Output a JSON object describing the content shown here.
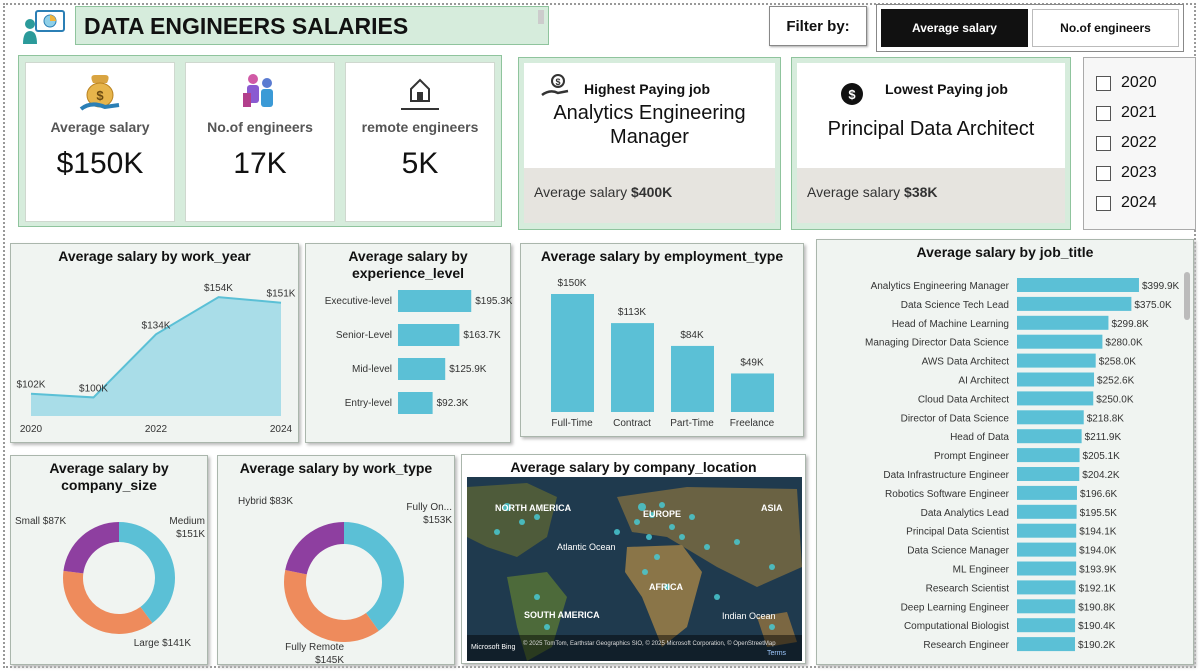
{
  "header": {
    "title": "DATA ENGINEERS SALARIES",
    "filter_label": "Filter by:",
    "toggle_active": "Average salary",
    "toggle_inactive": "No.of engineers"
  },
  "kpis": [
    {
      "label": "Average salary",
      "value": "$150K",
      "icon": "money-bag-icon"
    },
    {
      "label": "No.of engineers",
      "value": "17K",
      "icon": "people-icon"
    },
    {
      "label": "remote engineers",
      "value": "5K",
      "icon": "home-icon"
    }
  ],
  "highest": {
    "heading": "Highest Paying job",
    "job": "Analytics Engineering Manager",
    "foot_label": "Average salary",
    "foot_value": "$400K"
  },
  "lowest": {
    "heading": "Lowest Paying job",
    "job": "Principal Data Architect",
    "foot_label": "Average salary",
    "foot_value": "$38K"
  },
  "years": [
    "2020",
    "2021",
    "2022",
    "2023",
    "2024"
  ],
  "map": {
    "title": "Average salary by company_location",
    "labels": [
      "NORTH AMERICA",
      "EUROPE",
      "ASIA",
      "Atlantic Ocean",
      "AFRICA",
      "SOUTH AMERICA",
      "Indian Ocean"
    ],
    "attribution": "© 2025 TomTom, Earthstar Geographics SIO, © 2025 Microsoft Corporation, © OpenStreetMap",
    "terms": "Terms",
    "brand": "Microsoft Bing"
  },
  "colors": {
    "teal": "#5bc0d6",
    "orange": "#ee8b5c",
    "purple": "#8e3fa0",
    "panel_green": "#d6ecdc"
  },
  "chart_data": [
    {
      "type": "area",
      "title": "Average salary by work_year",
      "x": [
        2020,
        2021,
        2022,
        2023,
        2024
      ],
      "values": [
        102,
        100,
        134,
        154,
        151
      ],
      "labels": [
        "$102K",
        "$100K",
        "$134K",
        "$154K",
        "$151K"
      ],
      "xticks": [
        "2020",
        "2022",
        "2024"
      ]
    },
    {
      "type": "bar",
      "title": "Average salary by experience_level",
      "categories": [
        "Executive-level",
        "Senior-Level",
        "Mid-level",
        "Entry-level"
      ],
      "values": [
        195.3,
        163.7,
        125.9,
        92.3
      ],
      "labels": [
        "$195.3K",
        "$163.7K",
        "$125.9K",
        "$92.3K"
      ]
    },
    {
      "type": "bar",
      "title": "Average salary by employment_type",
      "categories": [
        "Full-Time",
        "Contract",
        "Part-Time",
        "Freelance"
      ],
      "values": [
        150,
        113,
        84,
        49
      ],
      "labels": [
        "$150K",
        "$113K",
        "$84K",
        "$49K"
      ]
    },
    {
      "type": "bar",
      "title": "Average salary by job_title",
      "categories": [
        "Analytics Engineering Manager",
        "Data Science Tech Lead",
        "Head of Machine Learning",
        "Managing Director Data Science",
        "AWS Data Architect",
        "AI Architect",
        "Cloud Data Architect",
        "Director of Data Science",
        "Head of Data",
        "Prompt Engineer",
        "Data Infrastructure Engineer",
        "Robotics Software Engineer",
        "Data Analytics Lead",
        "Principal Data Scientist",
        "Data Science Manager",
        "ML Engineer",
        "Research Scientist",
        "Deep Learning Engineer",
        "Computational Biologist",
        "Research Engineer"
      ],
      "values": [
        399.9,
        375.0,
        299.8,
        280.0,
        258.0,
        252.6,
        250.0,
        218.8,
        211.9,
        205.1,
        204.2,
        196.6,
        195.5,
        194.1,
        194.0,
        193.9,
        192.1,
        190.8,
        190.4,
        190.2
      ],
      "labels": [
        "$399.9K",
        "$375.0K",
        "$299.8K",
        "$280.0K",
        "$258.0K",
        "$252.6K",
        "$250.0K",
        "$218.8K",
        "$211.9K",
        "$205.1K",
        "$204.2K",
        "$196.6K",
        "$195.5K",
        "$194.1K",
        "$194.0K",
        "$193.9K",
        "$192.1K",
        "$190.8K",
        "$190.4K",
        "$190.2K"
      ]
    },
    {
      "type": "pie",
      "title": "Average salary by company_size",
      "categories": [
        "Medium",
        "Large",
        "Small"
      ],
      "values": [
        151,
        141,
        87
      ],
      "labels": [
        "Medium\n$151K",
        "Large $141K",
        "Small $87K"
      ],
      "colors": [
        "#5bc0d6",
        "#ee8b5c",
        "#8e3fa0"
      ]
    },
    {
      "type": "pie",
      "title": "Average salary by work_type",
      "categories": [
        "Fully On...",
        "Fully Remote",
        "Hybrid"
      ],
      "values": [
        153,
        145,
        83
      ],
      "labels": [
        "Fully On...\n$153K",
        "Fully Remote\n$145K",
        "Hybrid $83K"
      ],
      "colors": [
        "#5bc0d6",
        "#ee8b5c",
        "#8e3fa0"
      ]
    }
  ]
}
